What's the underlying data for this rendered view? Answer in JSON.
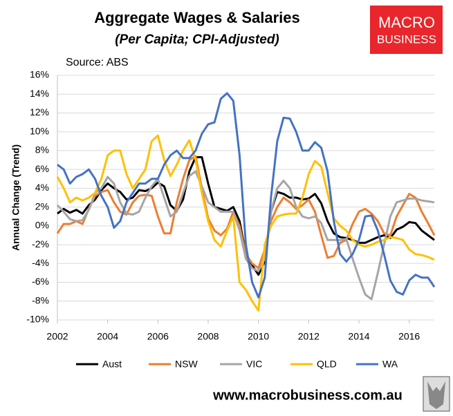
{
  "chart_data": {
    "type": "line",
    "title": "Aggregate Wages & Salaries",
    "subtitle": "(Per Capita; CPI-Adjusted)",
    "source": "Source: ABS",
    "ylabel": "Annual Change (Trend)",
    "logo": [
      "MACRO",
      "BUSINESS"
    ],
    "footer": "www.macrobusiness.com.au",
    "grid": true,
    "legend": "bottom",
    "xlim": [
      2002,
      2017
    ],
    "xticks": [
      2002,
      2004,
      2006,
      2008,
      2010,
      2012,
      2014,
      2016
    ],
    "ylim": [
      -10,
      16
    ],
    "yticks": [
      {
        "value": -10,
        "label": "-10%"
      },
      {
        "value": -8,
        "label": "-8%"
      },
      {
        "value": -6,
        "label": "-6%"
      },
      {
        "value": -4,
        "label": "-4%"
      },
      {
        "value": -2,
        "label": "-2%"
      },
      {
        "value": 0,
        "label": "0%"
      },
      {
        "value": 2,
        "label": "2%"
      },
      {
        "value": 4,
        "label": "4%"
      },
      {
        "value": 6,
        "label": "6%"
      },
      {
        "value": 8,
        "label": "8%"
      },
      {
        "value": 10,
        "label": "10%"
      },
      {
        "value": 12,
        "label": "12%"
      },
      {
        "value": 14,
        "label": "14%"
      },
      {
        "value": 16,
        "label": "16%"
      }
    ],
    "x": [
      2002,
      2002.25,
      2002.5,
      2002.75,
      2003,
      2003.25,
      2003.5,
      2003.75,
      2004,
      2004.25,
      2004.5,
      2004.75,
      2005,
      2005.25,
      2005.5,
      2005.75,
      2006,
      2006.25,
      2006.5,
      2006.75,
      2007,
      2007.25,
      2007.5,
      2007.75,
      2008,
      2008.25,
      2008.5,
      2008.75,
      2009,
      2009.25,
      2009.5,
      2009.75,
      2010,
      2010.25,
      2010.5,
      2010.75,
      2011,
      2011.25,
      2011.5,
      2011.75,
      2012,
      2012.25,
      2012.5,
      2012.75,
      2013,
      2013.25,
      2013.5,
      2013.75,
      2014,
      2014.25,
      2014.5,
      2014.75,
      2015,
      2015.25,
      2015.5,
      2015.75,
      2016,
      2016.25,
      2016.5,
      2016.75,
      2017
    ],
    "series": [
      {
        "name": "Aust",
        "color": "#000000",
        "values": [
          1.3,
          1.8,
          1.4,
          1.7,
          1.3,
          2.2,
          2.8,
          3.8,
          4.5,
          4.0,
          3.6,
          2.8,
          3.0,
          3.8,
          3.7,
          4.0,
          4.6,
          4.2,
          2.2,
          1.6,
          2.8,
          5.8,
          7.3,
          7.3,
          4.5,
          2.0,
          1.8,
          1.6,
          2.0,
          0.5,
          -3.0,
          -4.2,
          -5.2,
          -3.8,
          1.5,
          3.6,
          3.4,
          3.0,
          3.0,
          2.8,
          2.9,
          3.4,
          2.4,
          0.5,
          -0.8,
          -1.2,
          -1.3,
          -1.5,
          -1.8,
          -1.8,
          -1.5,
          -1.2,
          -1.0,
          -1.3,
          -0.4,
          -0.1,
          0.4,
          0.3,
          -0.5,
          -1.0,
          -1.5
        ]
      },
      {
        "name": "NSW",
        "color": "#ed7d31",
        "values": [
          -0.8,
          0.2,
          0.2,
          0.5,
          0.2,
          1.8,
          3.2,
          3.6,
          3.8,
          2.5,
          1.5,
          1.2,
          2.5,
          3.2,
          3.3,
          3.2,
          1.0,
          -0.8,
          -0.8,
          2.5,
          5.0,
          7.0,
          7.4,
          4.0,
          0.8,
          -0.5,
          -1.0,
          -0.3,
          1.5,
          0.0,
          -3.0,
          -4.0,
          -4.5,
          -2.5,
          0.5,
          2.0,
          3.0,
          2.5,
          1.8,
          2.2,
          2.8,
          1.5,
          -1.0,
          -3.4,
          -3.2,
          -1.8,
          -1.5,
          0.2,
          1.5,
          1.8,
          1.3,
          0.5,
          -0.8,
          -1.0,
          1.0,
          2.2,
          3.4,
          3.0,
          1.5,
          0.3,
          -1.0
        ]
      },
      {
        "name": "VIC",
        "color": "#a5a5a5",
        "values": [
          2.2,
          1.5,
          0.7,
          0.5,
          0.6,
          1.7,
          3.5,
          4.0,
          5.2,
          4.5,
          2.5,
          1.3,
          1.2,
          1.5,
          3.0,
          4.2,
          5.0,
          3.0,
          1.0,
          1.5,
          3.5,
          5.3,
          5.8,
          4.2,
          2.5,
          2.0,
          1.5,
          1.5,
          1.5,
          -0.5,
          -3.5,
          -4.5,
          -4.8,
          -3.5,
          1.5,
          4.0,
          4.8,
          4.0,
          2.0,
          1.0,
          0.8,
          1.0,
          0.3,
          -1.5,
          -1.5,
          -1.5,
          -1.4,
          -3.5,
          -5.5,
          -7.3,
          -7.8,
          -5.0,
          -2.0,
          1.0,
          2.5,
          2.7,
          2.9,
          2.9,
          2.7,
          2.6,
          2.5
        ]
      },
      {
        "name": "QLD",
        "color": "#ffc000",
        "values": [
          5.2,
          4.0,
          2.5,
          3.0,
          2.7,
          3.0,
          3.5,
          5.0,
          7.5,
          8.0,
          8.0,
          5.5,
          4.0,
          5.0,
          6.0,
          9.0,
          9.6,
          7.0,
          5.3,
          6.5,
          8.0,
          9.1,
          7.0,
          3.5,
          0.5,
          -1.5,
          -2.2,
          -0.5,
          1.0,
          -6.0,
          -6.8,
          -8.0,
          -9.0,
          -2.0,
          0.0,
          1.0,
          1.2,
          1.3,
          1.3,
          3.0,
          5.5,
          6.9,
          6.3,
          3.5,
          0.8,
          0.0,
          -0.5,
          -1.5,
          -2.0,
          -2.2,
          -2.0,
          -1.7,
          -1.5,
          -1.2,
          -1.3,
          -1.5,
          -2.5,
          -3.0,
          -3.1,
          -3.3,
          -3.6
        ]
      },
      {
        "name": "WA",
        "color": "#4472c4",
        "values": [
          6.5,
          6.0,
          4.5,
          5.2,
          5.5,
          6.0,
          5.0,
          3.2,
          2.0,
          -0.2,
          0.5,
          2.5,
          3.5,
          4.5,
          4.5,
          5.0,
          5.0,
          6.5,
          7.5,
          8.0,
          7.2,
          7.2,
          8.0,
          9.8,
          10.8,
          11.0,
          13.5,
          14.1,
          13.3,
          7.5,
          -2.0,
          -6.0,
          -7.6,
          -5.5,
          3.0,
          9.0,
          11.5,
          11.4,
          10.0,
          8.0,
          8.0,
          8.9,
          8.3,
          5.8,
          0.5,
          -3.0,
          -3.8,
          -3.0,
          -1.5,
          1.0,
          1.1,
          -0.5,
          -3.0,
          -5.8,
          -7.0,
          -7.3,
          -5.8,
          -5.2,
          -5.5,
          -5.5,
          -6.5
        ]
      }
    ]
  }
}
